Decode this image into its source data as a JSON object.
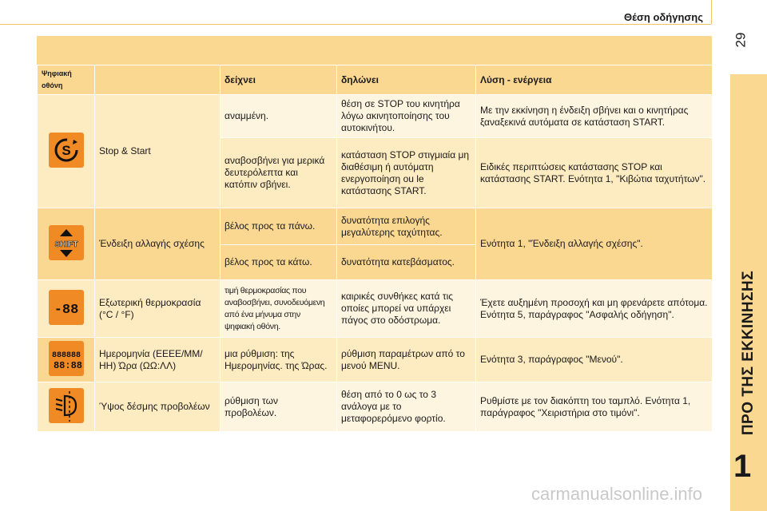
{
  "header": {
    "title": "Θέση οδήγησης",
    "page_number": "29"
  },
  "side": {
    "title": "ΠΡΟ ΤΗΣ ΕΚΚΙΝΗΣΗΣ",
    "chapter": "1"
  },
  "watermark": "carmanualsonline.info",
  "table": {
    "headers": [
      "Ψηφιακή οθόνη",
      "",
      "δείχνει",
      "δηλώνει",
      "Λύση - ενέργεια"
    ],
    "rows": [
      {
        "icon": "stop-start-icon",
        "label": "Stop & Start",
        "sub": [
          {
            "shows": "αναμμένη.",
            "means": "θέση σε STOP του κινητήρα λόγω ακινητοποίησης του αυτοκινήτου.",
            "action": "Με την εκκίνηση η ένδειξη σβήνει και ο κινητήρας ξαναξεκινά αυτόματα σε κατάσταση START."
          },
          {
            "shows": "αναβοσβήνει για μερικά δευτερόλεπτα και κατόπιν σβήνει.",
            "means": "κατάσταση STOP στιγμιαία μη διαθέσιμη ή αυτόματη ενεργοποίηση ou le κατάστασης START.",
            "action": "Ειδικές περιπτώσεις κατάστασης STOP και κατάστασης START. Ενότητα 1, \"Κιβώτια ταχυτήτων\"."
          }
        ]
      },
      {
        "icon": "shift-indicator-icon",
        "label": "Ένδειξη αλλαγής σχέσης",
        "sub": [
          {
            "shows": "βέλος προς τα πάνω.",
            "means": "δυνατότητα επιλογής μεγαλύτερης ταχύτητας."
          },
          {
            "shows": "βέλος προς τα κάτω.",
            "means": "δυνατότητα κατεβάσματος."
          }
        ],
        "action": "Ενότητα 1, \"Ένδειξη αλλαγής σχέσης\"."
      },
      {
        "icon": "temperature-display-icon",
        "label": "Εξωτερική θερμοκρασία (°C / °F)",
        "shows": "τιμή θερμοκρασίας που αναβοσβήνει, συνοδευόμενη από ένα μήνυμα στην ψηφιακή οθόνη.",
        "means": "καιρικές συνθήκες κατά τις οποίες μπορεί να υπάρχει πάγος στο οδόστρωμα.",
        "action": "Έχετε αυξημένη προσοχή και μη φρενάρετε απότομα. Ενότητα 5, παράγραφος \"Ασφαλής οδήγηση\"."
      },
      {
        "icon": "date-time-display-icon",
        "label": "Ημερομηνία (ΕΕΕΕ/ΜΜ/ΗΗ) Ώρα (ΩΩ:ΛΛ)",
        "shows": "μια ρύθμιση: της Ημερομηνίας. της Ώρας.",
        "means": "ρύθμιση παραμέτρων από το μενού MENU.",
        "action": "Ενότητα 3, παράγραφος \"Μενού\"."
      },
      {
        "icon": "headlamp-height-icon",
        "label": "Ύψος δέσμης προβολέων",
        "shows": "ρύθμιση των προβολέων.",
        "means": "θέση από το 0 ως το 3 ανάλογα με το μεταφορερόμενο φορτίο.",
        "action": "Ρυθμίστε με τον διακόπτη του ταμπλό. Ενότητα 1, παράγραφος \"Χειριστήρια στο τιμόνι\"."
      }
    ]
  }
}
